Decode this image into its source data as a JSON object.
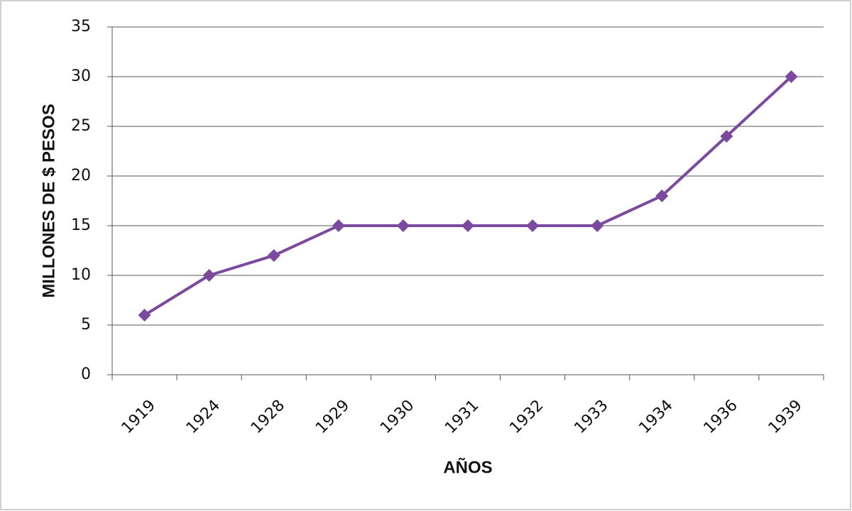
{
  "chart_data": {
    "type": "line",
    "y_label": "MILLONES DE $ PESOS",
    "x_label": "AÑOS",
    "categories": [
      "1919",
      "1924",
      "1928",
      "1929",
      "1930",
      "1931",
      "1932",
      "1933",
      "1934",
      "1936",
      "1939"
    ],
    "series": [
      {
        "color": "#7b4a9e",
        "values": [
          6,
          10,
          12,
          15,
          15,
          15,
          15,
          15,
          18,
          24,
          30
        ]
      }
    ],
    "ylim": [
      0,
      35
    ],
    "yticks": [
      0,
      5,
      10,
      15,
      20,
      25,
      30,
      35
    ],
    "grid": true
  }
}
